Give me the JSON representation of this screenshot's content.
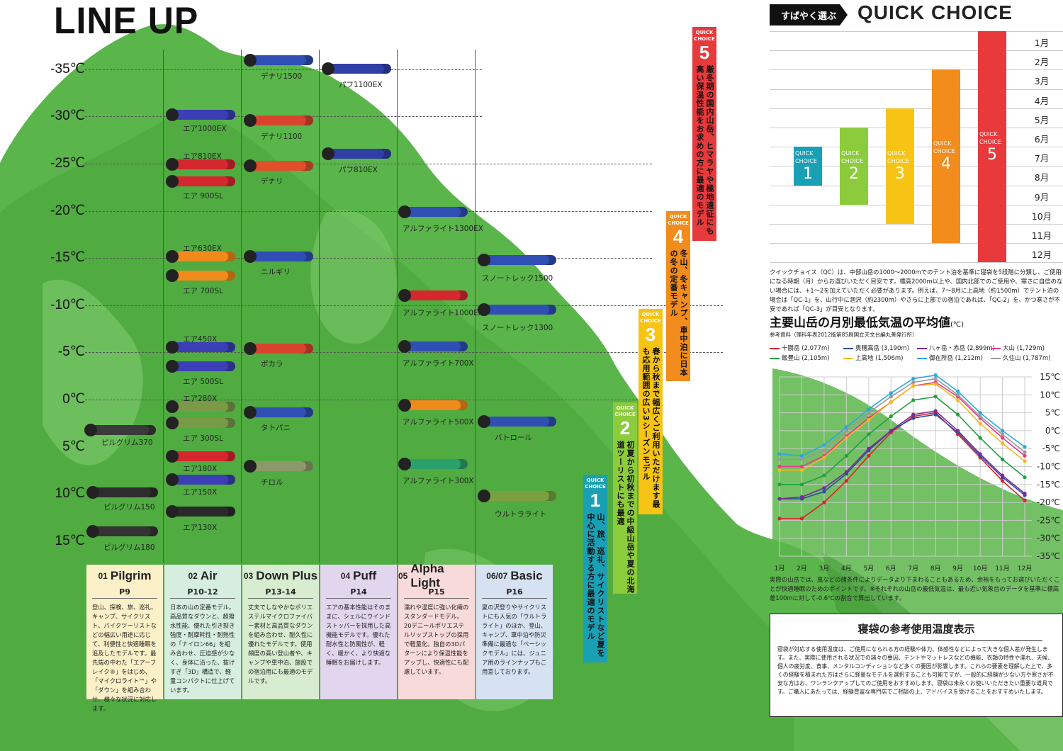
{
  "title": "LINE UP",
  "temperatures": [
    "-35℃",
    "-30℃",
    "-25℃",
    "-20℃",
    "-15℃",
    "-10℃",
    "-5℃",
    "0℃",
    "5℃",
    "10℃",
    "15℃"
  ],
  "bags": [
    {
      "label": "ピルグリム370",
      "color": "#3a3a3a"
    },
    {
      "label": "ピルグリム150",
      "color": "#2d2d2d"
    },
    {
      "label": "ピルグリム180",
      "color": "#333"
    },
    {
      "label": "エア1000EX",
      "color": "#3b3fb5"
    },
    {
      "label": "エア810EX",
      "color": "#d6262e"
    },
    {
      "label": "エア 900SL",
      "color": "#d6262e"
    },
    {
      "label": "エア630EX",
      "color": "#f08a1a"
    },
    {
      "label": "エア 700SL",
      "color": "#f08a1a"
    },
    {
      "label": "エア450X",
      "color": "#3b3fb5"
    },
    {
      "label": "エア 500SL",
      "color": "#3b3fb5"
    },
    {
      "label": "エア280X",
      "color": "#7a9a48"
    },
    {
      "label": "エア 300SL",
      "color": "#7a9a48"
    },
    {
      "label": "エア180X",
      "color": "#d6262e"
    },
    {
      "label": "エア150X",
      "color": "#3b3fb5"
    },
    {
      "label": "エア130X",
      "color": "#2a2a2a"
    },
    {
      "label": "デナリ1500",
      "color": "#2f4fb5"
    },
    {
      "label": "デナリ1100",
      "color": "#d9432e"
    },
    {
      "label": "デナリ",
      "color": "#e0502a"
    },
    {
      "label": "ニルギリ",
      "color": "#2f4fb5"
    },
    {
      "label": "ポカラ",
      "color": "#d9432e"
    },
    {
      "label": "タトパニ",
      "color": "#2f4fb5"
    },
    {
      "label": "チロル",
      "color": "#8a9a6a"
    },
    {
      "label": "パフ1100EX",
      "color": "#2f3fa5"
    },
    {
      "label": "パフ810EX",
      "color": "#2f3fa5"
    },
    {
      "label": "アルファライト1300EX",
      "color": "#2f4fb5"
    },
    {
      "label": "アルファライト1000EX",
      "color": "#d6262e"
    },
    {
      "label": "アルファライト700X",
      "color": "#2f4fb5"
    },
    {
      "label": "アルファライト500X",
      "color": "#f08a1a"
    },
    {
      "label": "アルファライト300X",
      "color": "#2aa06a"
    },
    {
      "label": "スノートレック1500",
      "color": "#2f4fb5"
    },
    {
      "label": "スノートレック1300",
      "color": "#2f4fb5"
    },
    {
      "label": "バトロール",
      "color": "#2f4fb5"
    },
    {
      "label": "ウルトラライト",
      "color": "#7aa040"
    }
  ],
  "products": [
    {
      "num": "01",
      "name": "Pilgrim",
      "page": "P9",
      "desc": "登山、探検、旅、巡礼、キャンプ、サイクリスト、バイクツーリストなどの幅広い用途に応じて、利便性と快適睡眠を追及したモデルです。最先端の中わた「エアーフレイク®」をはじめ、「マイクロライト™」や「ダウン」を組み合わせ、様々な状況に対応します。"
    },
    {
      "num": "02",
      "name": "Air",
      "page": "P10-12",
      "desc": "日本の山の定番モデル。高品質なダウンと、超撥水性能、優れた引き裂き強度・耐摩耗性・耐熱性の「ナイロン66」を組み合わせ、圧迫感が少なく、身体に沿った、抜けすぎ「3D」構造で、軽量コンパクトに仕上げています。"
    },
    {
      "num": "03",
      "name": "Down Plus",
      "page": "P13-14",
      "desc": "丈夫でしなやかなポリエステルマイクロファイバー素材と高品質なダウンを組み合わせ、耐久性に優れたモデルです。使用頻度の高い登山者や、キャンプや車中泊、施設での宿泊用にも最適のモデルです。"
    },
    {
      "num": "04",
      "name": "Puff",
      "page": "P14",
      "desc": "エアの基本性能はそのままに、シェルにウインドストッパーを採用した高機能モデルです。優れた耐水性と防風性が、軽く、暖かく、より快適な睡眠をお届けします。"
    },
    {
      "num": "05",
      "name": "Alpha Light",
      "page": "P15",
      "desc": "濡れや湿度に強い化繊のスタンダードモデル。20デニールポリエステルリップストップの採用で軽量化。独自の3Dパターンにより保温性能をアップし、快適性にも配慮しています。"
    },
    {
      "num": "06/07",
      "name": "Basic",
      "page": "P16",
      "desc": "夏の沢登りやサイクリストにも人気の「ウルトラライト」のほか、登山、キャンプ、車中泊や防災準備に最適な「ベーシックモデル」には、ジュニア用のラインナップもご用意しております。"
    }
  ],
  "quick_choices": [
    {
      "head": "QUICK CHOICE",
      "num": "1",
      "text": "山、旅、巡礼、サイクリストなど夏を中心に活動する方に最適のモデル",
      "color": "#1aa0b4"
    },
    {
      "head": "QUICK CHOICE",
      "num": "2",
      "text": "初夏から初秋までの中級山岳や夏の北海道ツーリストにも最適",
      "color": "#8ccc3c"
    },
    {
      "head": "QUICK CHOICE",
      "num": "3",
      "text": "春から秋まで幅広くご利用いただけます最も応用範囲の広い3シーズンモデル",
      "color": "#f7c314"
    },
    {
      "head": "QUICK CHOICE",
      "num": "4",
      "text": "冬山、冬キャンプ、車中泊に日本の冬の定番モデル",
      "color": "#f28c1c"
    },
    {
      "head": "QUICK CHOICE",
      "num": "5",
      "text": "厳冬期の国内山岳、ヒマラヤや極地遠征にも高い保温性能をお求めの方に最適のモデル",
      "color": "#e8393c"
    }
  ],
  "quick_header": {
    "jp": "すばやく選ぶ",
    "en": "QUICK CHOICE"
  },
  "months_right": [
    "1月",
    "2月",
    "3月",
    "4月",
    "5月",
    "6月",
    "7月",
    "8月",
    "9月",
    "10月",
    "11月",
    "12月"
  ],
  "quick_note": "クイックチョイス（QC）は、中部山岳の1000〜2000mでのテント泊を基準に寝袋を5段階に分類し、ご使用になる時期（月）からお選びいただく目安です。標高2000m以上や、国内北部でのご使用や、寒さに自信のない場合には、+1〜2を加えていただく必要があります。例えば、7〜8月に上高地（約1500m）でテント泊の場合は「QC-1」を、山行中に涸沢（約2300m）やさらに上部での宿泊であれば、「QC-2」を、かつ寒さが不安であれば「QC-3」が目安となります。",
  "temp_chart_title": "主要山岳の月別最低気温の平均値",
  "temp_chart_unit": "(℃)",
  "temp_chart_source": "参考資料（理科年表2012版第85刷国立天文台編丸善発行所）",
  "chart_data": {
    "type": "line",
    "title": "主要山岳の月別最低気温の平均値",
    "ylabel": "(℃)",
    "categories": [
      "1月",
      "2月",
      "3月",
      "4月",
      "5月",
      "6月",
      "7月",
      "8月",
      "9月",
      "10月",
      "11月",
      "12月"
    ],
    "yticks": [
      "15℃",
      "10℃",
      "5℃",
      "0℃",
      "-5℃",
      "-10℃",
      "-15℃",
      "-20℃",
      "-25℃",
      "-30℃",
      "-35℃"
    ],
    "ylim": [
      -35,
      15
    ],
    "series": [
      {
        "name": "十勝岳 (2,077m)",
        "color": "#e0202a",
        "values": [
          -24.5,
          -24.5,
          -20,
          -14,
          -7,
          -0.5,
          4,
          5,
          -1,
          -7.5,
          -14,
          -19.5
        ]
      },
      {
        "name": "奥穂高岳 (3,190m)",
        "color": "#2c4fa0",
        "values": [
          -19,
          -19,
          -17,
          -12,
          -5.5,
          0,
          3.5,
          4.5,
          -0.5,
          -7,
          -13,
          -18
        ]
      },
      {
        "name": "八ヶ岳・赤岳 (2,899m)",
        "color": "#7a2a9a",
        "values": [
          -19,
          -18.5,
          -16,
          -11.5,
          -5,
          0,
          4.5,
          5.5,
          0,
          -6.5,
          -12.5,
          -17.5
        ]
      },
      {
        "name": "大山 (1,729m)",
        "color": "#e83a8a",
        "values": [
          -10,
          -10,
          -7,
          -1.5,
          3.5,
          8,
          12.5,
          13.5,
          9.5,
          3.5,
          -2,
          -7
        ]
      },
      {
        "name": "飯豊山 (2,105m)",
        "color": "#20a040",
        "values": [
          -15,
          -15,
          -12.5,
          -7,
          -1,
          4,
          8.5,
          9.5,
          4.5,
          -2,
          -8,
          -13
        ]
      },
      {
        "name": "上高地 (1,506m)",
        "color": "#f5b820",
        "values": [
          -11,
          -11,
          -7.5,
          -2,
          3,
          8,
          12.5,
          13,
          8.5,
          2,
          -3.5,
          -8.5
        ]
      },
      {
        "name": "御在所岳 (1,212m)",
        "color": "#2aa8dc",
        "values": [
          -6.5,
          -7,
          -4,
          1,
          6,
          10.5,
          14.5,
          15.5,
          11,
          5,
          0,
          -4.5
        ]
      },
      {
        "name": "久住山 (1,787m)",
        "color": "#999999",
        "values": [
          -8,
          -8,
          -5.5,
          0,
          5,
          9.5,
          13.5,
          14.5,
          10,
          4,
          -1,
          -6
        ]
      }
    ]
  },
  "months_short": [
    "1月",
    "2月",
    "3月",
    "4月",
    "5月",
    "6月",
    "7月",
    "8月",
    "9月",
    "10月",
    "11月",
    "12月"
  ],
  "temp_note": "実際の山岳では、風などの諸条件によりデータより下まわることもあるため、余裕をもってお選びいただくことが快適睡眠のためのポイントです。※それぞれの山岳の最低気温は、最も近い気象台のデータを基準に標高差100mに対して-0.6℃の割合で算出しています。",
  "usage_box": {
    "title": "寝袋の参考使用温度表示",
    "text": "寝袋が対応する使用温度は、ご使用になられる方の経験や体力、体感性などによって大きな個人差が発生します。また、実際に使用される状況での諸々の要因、テントやマットレスなどの機能、衣類の特性や濡れ、天候、個人の疲労度、食事、メンタルコンディションなど多くの要因が影響します。これらの要素を理解した上で、多くの経験を積まれた方はさらに軽量なモデルを選択することも可能ですが、一般的に経験が少ない方や寒さが不安な方はお、ワンランクアップしてのご使用をおすすめします。寝袋は未永くお使いいただきたい重要な道具です。ご購入にあたっては、経験豊富な専門店でご相談の上、アドバイスを受けることをおすすめいたします。"
  }
}
